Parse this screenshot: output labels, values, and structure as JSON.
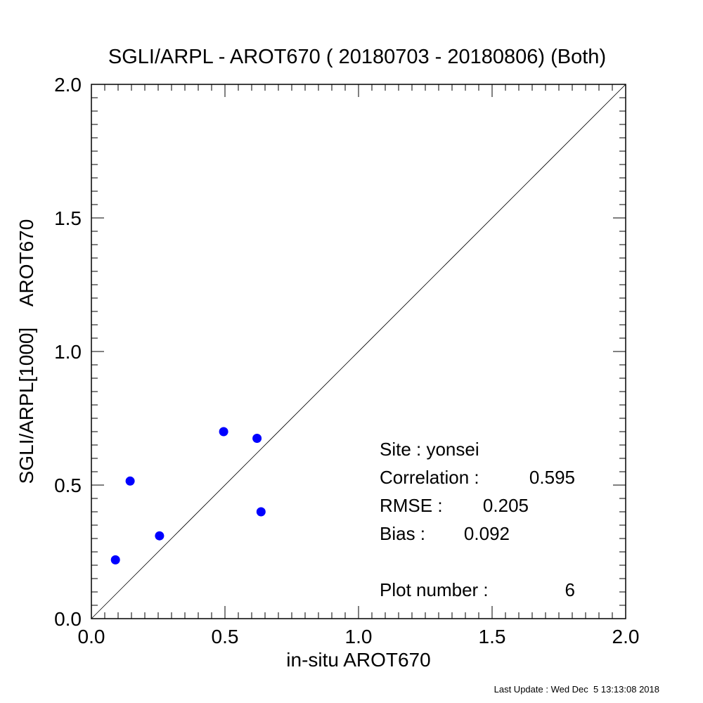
{
  "chart_data": {
    "type": "scatter",
    "title": "SGLI/ARPL - AROT670 ( 20180703 - 20180806) (Both)",
    "xlabel": "in-situ AROT670",
    "ylabel": "SGLI/ARPL[1000]    AROT670",
    "xlim": [
      0.0,
      2.0
    ],
    "ylim": [
      0.0,
      2.0
    ],
    "x_ticks": [
      "0.0",
      "0.5",
      "1.0",
      "1.5",
      "2.0"
    ],
    "y_ticks": [
      "0.0",
      "0.5",
      "1.0",
      "1.5",
      "2.0"
    ],
    "grid": false,
    "reference_line": "1:1",
    "point_color": "#0000ff",
    "series": [
      {
        "points": [
          {
            "x": 0.09,
            "y": 0.22
          },
          {
            "x": 0.145,
            "y": 0.515
          },
          {
            "x": 0.255,
            "y": 0.31
          },
          {
            "x": 0.495,
            "y": 0.7
          },
          {
            "x": 0.62,
            "y": 0.675
          },
          {
            "x": 0.635,
            "y": 0.4
          }
        ]
      }
    ],
    "annotations": {
      "site": "Site : yonsei",
      "correlation_label": "Correlation :",
      "correlation_value": "0.595",
      "rmse_label": "RMSE :",
      "rmse_value": "0.205",
      "bias_label": "Bias :",
      "bias_value": "0.092",
      "plot_number_label": "Plot number :",
      "plot_number_value": "6"
    }
  },
  "footer": "Last Update : Wed Dec  5 13:13:08 2018"
}
